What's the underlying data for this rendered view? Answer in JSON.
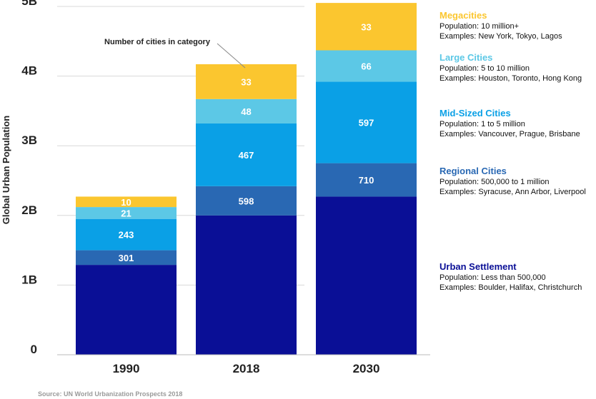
{
  "chart_data": {
    "type": "bar",
    "stacked": true,
    "categories": [
      "1990",
      "2018",
      "2030"
    ],
    "ylabel": "Global Urban Population",
    "ylim": [
      0,
      5000000000
    ],
    "yticks": [
      {
        "value": 0,
        "label": "0"
      },
      {
        "value": 1000000000,
        "label": "1B"
      },
      {
        "value": 2000000000,
        "label": "2B"
      },
      {
        "value": 3000000000,
        "label": "3B"
      },
      {
        "value": 4000000000,
        "label": "4B"
      },
      {
        "value": 5000000000,
        "label": "5B"
      }
    ],
    "grid": true,
    "series": [
      {
        "name": "Urban Settlement",
        "color": "#0a0f96",
        "values": [
          1290000000,
          2000000000,
          2270000000
        ],
        "city_counts": [
          null,
          null,
          null
        ]
      },
      {
        "name": "Regional Cities",
        "color": "#2968b3",
        "values": [
          210000000,
          420000000,
          480000000
        ],
        "city_counts": [
          "301",
          "598",
          "710"
        ]
      },
      {
        "name": "Mid-Sized Cities",
        "color": "#0aa0e6",
        "values": [
          450000000,
          900000000,
          1170000000
        ],
        "city_counts": [
          "243",
          "467",
          "597"
        ]
      },
      {
        "name": "Large Cities",
        "color": "#5cc8e6",
        "values": [
          170000000,
          350000000,
          450000000
        ],
        "city_counts": [
          "21",
          "48",
          "66"
        ]
      },
      {
        "name": "Megacities",
        "color": "#fbc62f",
        "values": [
          150000000,
          500000000,
          680000000
        ],
        "city_counts": [
          "10",
          "33",
          "33"
        ]
      }
    ],
    "annotation": "Number of cities in category",
    "source": "Source: UN World Urbanization Prospects 2018"
  },
  "legend": [
    {
      "name": "Megacities",
      "color": "#fbc62f",
      "population": "Population: 10 million+",
      "examples": "Examples: New York, Tokyo, Lagos"
    },
    {
      "name": "Large Cities",
      "color": "#5cc8e6",
      "population": "Population:  5 to 10 million",
      "examples": "Examples: Houston, Toronto, Hong Kong"
    },
    {
      "name": "Mid-Sized Cities",
      "color": "#0aa0e6",
      "population": "Population:  1 to 5 million",
      "examples": "Examples: Vancouver, Prague, Brisbane"
    },
    {
      "name": "Regional Cities",
      "color": "#2968b3",
      "population": "Population:  500,000 to 1 million",
      "examples": "Examples: Syracuse, Ann Arbor, Liverpool"
    },
    {
      "name": "Urban Settlement",
      "color": "#0a0f96",
      "population": "Population:  Less than 500,000",
      "examples": "Examples: Boulder, Halifax, Christchurch"
    }
  ]
}
